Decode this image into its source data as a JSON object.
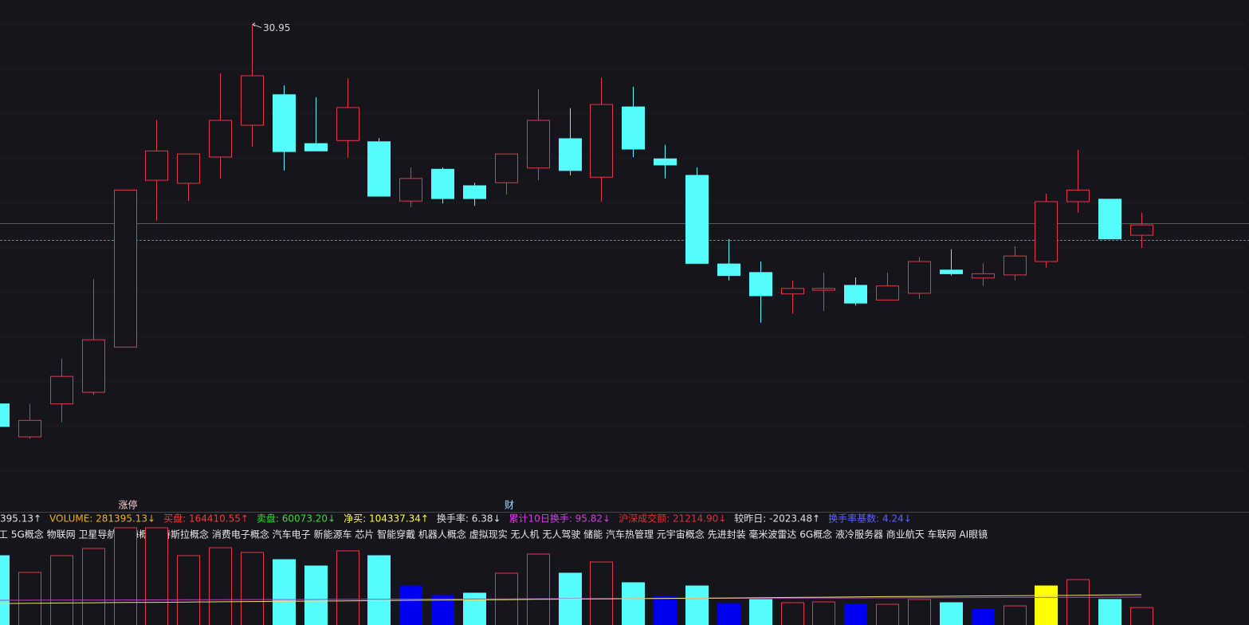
{
  "chart_data": {
    "type": "candlestick",
    "ylim": [
      23.0,
      31.35
    ],
    "grid": true,
    "up_color": "#e0394a",
    "down_color": "#54fcfc",
    "open": [
      24.74,
      24.2,
      24.74,
      24.93,
      25.67,
      28.4,
      28.35,
      28.78,
      29.3,
      29.8,
      29.0,
      29.05,
      29.03,
      28.06,
      28.58,
      28.31,
      28.36,
      28.6,
      29.08,
      28.45,
      29.6,
      28.75,
      28.48,
      27.03,
      26.89,
      26.54,
      26.6,
      26.68,
      26.44,
      26.55,
      26.93,
      26.8,
      26.85,
      27.07,
      28.05,
      28.09,
      27.5
    ],
    "high": [
      24.74,
      24.74,
      25.48,
      26.78,
      28.24,
      29.39,
      28.83,
      30.15,
      30.95,
      29.95,
      29.76,
      30.07,
      29.09,
      28.61,
      28.61,
      28.36,
      28.83,
      29.89,
      29.58,
      30.08,
      29.93,
      28.98,
      28.61,
      27.44,
      27.07,
      26.76,
      26.89,
      26.81,
      26.89,
      27.14,
      27.27,
      27.04,
      27.32,
      28.18,
      28.9,
      28.09,
      27.87
    ],
    "low": [
      24.37,
      24.17,
      24.44,
      24.89,
      25.67,
      27.74,
      28.06,
      28.43,
      28.95,
      28.56,
      28.88,
      28.77,
      28.14,
      27.96,
      28.02,
      27.98,
      28.17,
      28.4,
      28.48,
      28.05,
      28.78,
      28.43,
      27.04,
      26.76,
      26.07,
      26.22,
      26.26,
      26.35,
      26.44,
      26.46,
      26.84,
      26.67,
      26.76,
      26.97,
      27.87,
      27.44,
      27.29
    ],
    "close": [
      24.37,
      24.47,
      25.19,
      25.79,
      28.24,
      28.88,
      28.83,
      29.38,
      30.11,
      28.87,
      28.88,
      29.59,
      28.14,
      28.43,
      28.1,
      28.1,
      28.83,
      29.38,
      28.56,
      29.64,
      28.91,
      28.65,
      27.04,
      26.84,
      26.51,
      26.63,
      26.63,
      26.39,
      26.67,
      27.07,
      26.87,
      26.87,
      27.16,
      28.05,
      28.24,
      27.44,
      27.67
    ],
    "event_labels": [
      null,
      null,
      null,
      null,
      "涨停",
      null,
      null,
      null,
      null,
      null,
      null,
      null,
      null,
      null,
      null,
      null,
      "财",
      null,
      null,
      null,
      null,
      null,
      null,
      null,
      null,
      null,
      null,
      null,
      null,
      null,
      null,
      null,
      null,
      null,
      null,
      null,
      null
    ],
    "price_lines": [
      {
        "value": 27.7,
        "color": "#5a5a5a",
        "style": "solid"
      },
      {
        "value": 27.42,
        "color": "#3a8fd0",
        "style": "dashed"
      }
    ],
    "volume_ylim": [
      0,
      1040000
    ],
    "volume": [
      765000,
      609000,
      765000,
      832000,
      1025000,
      1025000,
      765000,
      839000,
      795000,
      728000,
      669000,
      810000,
      765000,
      483000,
      394000,
      416000,
      602000,
      780000,
      602000,
      706000,
      513000,
      386000,
      483000,
      319000,
      357000,
      327000,
      334000,
      312000,
      312000,
      357000,
      327000,
      267000,
      297000,
      483000,
      542000,
      357000,
      281395
    ],
    "volume_colors": [
      "#54fcfc",
      "#e0394a",
      "#e0394a",
      "#e0394a",
      "#e0394a",
      "#e0394a",
      "#e0394a",
      "#e0394a",
      "#e0394a",
      "#54fcfc",
      "#54fcfc",
      "#e0394a",
      "#54fcfc",
      "#0000f0",
      "#0000f0",
      "#54fcfc",
      "#e0394a",
      "#e0394a",
      "#54fcfc",
      "#e0394a",
      "#54fcfc",
      "#0000f0",
      "#54fcfc",
      "#0000f0",
      "#54fcfc",
      "#e0394a",
      "#e0394a",
      "#0000f0",
      "#e0394a",
      "#e0394a",
      "#54fcfc",
      "#0000f0",
      "#e0394a",
      "#ffff00",
      "#e0394a",
      "#54fcfc",
      "#e0394a"
    ],
    "volume_ma": [
      {
        "color": "#c040c0",
        "values": [
          349000,
          350000,
          351000,
          351000,
          352000,
          353000,
          354000,
          355000,
          356000,
          356000,
          357000,
          358000,
          359000,
          360000,
          361000,
          361000,
          362000,
          363000,
          364000,
          365000,
          366000,
          366000,
          367000,
          368000,
          369000,
          370000,
          371000,
          371000,
          372000,
          373000,
          374000,
          375000,
          376000,
          376000,
          377000,
          378000,
          379000
        ]
      },
      {
        "color": "#e8e070",
        "values": [
          319000,
          321000,
          324000,
          326000,
          328000,
          330000,
          333000,
          335000,
          337000,
          340000,
          342000,
          344000,
          346000,
          349000,
          351000,
          353000,
          355000,
          358000,
          360000,
          362000,
          365000,
          367000,
          369000,
          371000,
          374000,
          376000,
          378000,
          380000,
          383000,
          385000,
          387000,
          390000,
          392000,
          394000,
          396000,
          399000,
          401000
        ]
      }
    ],
    "indicators": [
      {
        "text": "395.13↑",
        "color": "#e0e0e0"
      },
      {
        "text": "VOLUME: 281395.13↓",
        "color": "#f0b020"
      },
      {
        "text": "买盘: 164410.55↑",
        "color": "#ff3333"
      },
      {
        "text": "卖盘: 60073.20↓",
        "color": "#33dd33"
      },
      {
        "text": "净买: 104337.34↑",
        "color": "#ffff33"
      },
      {
        "text": "换手率: 6.38↓",
        "color": "#e0e0e0"
      },
      {
        "text": "累计10日换手: 95.82↓",
        "color": "#d040e0"
      },
      {
        "text": "沪深成交额: 21214.90↓",
        "color": "#e03030"
      },
      {
        "text": "较昨日: -2023.48↑",
        "color": "#e0e0e0"
      },
      {
        "text": "换手率基数: 4.24↓",
        "color": "#6060ff"
      }
    ],
    "concepts": "工 5G概念 物联网 卫星导航 上海概念 特斯拉概念 消费电子概念 汽车电子 新能源车 芯片 智能穿戴 机器人概念 虚拟现实 无人机 无人驾驶 储能 汽车热管理 元宇宙概念 先进封装 毫米波雷达 6G概念 液冷服务器 商业航天 车联网 AI眼镜"
  }
}
